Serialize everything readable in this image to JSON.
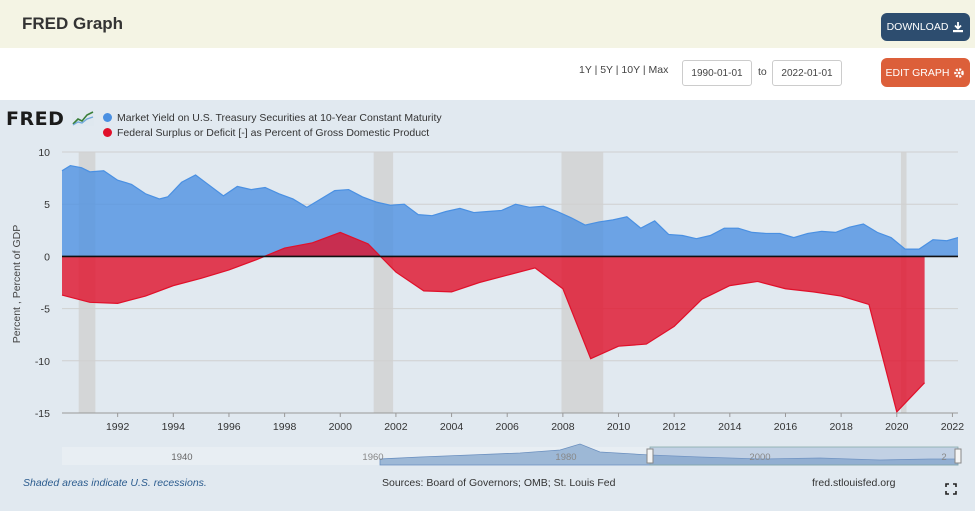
{
  "header": {
    "title": "FRED Graph",
    "download_label": "DOWNLOAD",
    "download_icon": "download-icon"
  },
  "controls": {
    "range_links": "1Y | 5Y | 10Y | Max",
    "start_date": "1990-01-01",
    "to_label": "to",
    "end_date": "2022-01-01",
    "edit_label": "EDIT GRAPH",
    "edit_icon": "gear-icon"
  },
  "logo": {
    "text": "FRED"
  },
  "legend": [
    {
      "label": "Market Yield on U.S. Treasury Securities at 10-Year Constant Maturity",
      "color": "#4a90e2"
    },
    {
      "label": "Federal Surplus or Deficit [-] as Percent of Gross Domestic Product",
      "color": "#e0102a"
    }
  ],
  "navigator": {
    "left_label": "1940",
    "labels": [
      "1960",
      "1980",
      "2000",
      "2"
    ]
  },
  "footer": {
    "recession_note": "Shaded areas indicate U.S. recessions.",
    "sources": "Sources: Board of Governors; OMB; St. Louis Fed",
    "site": "fred.stlouisfed.org",
    "expand_icon": "expand-icon"
  },
  "chart_data": {
    "type": "area",
    "ylabel": "Percent , Percent of GDP",
    "ylim": [
      -15,
      10
    ],
    "yticks": [
      10,
      5,
      0,
      -5,
      -10,
      -15
    ],
    "xlim": [
      1990.0,
      2022.2
    ],
    "xticks": [
      1992,
      1994,
      1996,
      1998,
      2000,
      2002,
      2004,
      2006,
      2008,
      2010,
      2012,
      2014,
      2016,
      2018,
      2020,
      2022
    ],
    "recessions": [
      [
        1990.6,
        1991.2
      ],
      [
        2001.2,
        2001.9
      ],
      [
        2007.95,
        2009.45
      ],
      [
        2020.15,
        2020.35
      ]
    ],
    "series": [
      {
        "name": "Market Yield on U.S. Treasury Securities at 10-Year Constant Maturity",
        "color": "#4a90e2",
        "x": [
          1990.0,
          1990.3,
          1990.7,
          1991.0,
          1991.5,
          1992.0,
          1992.5,
          1993.0,
          1993.5,
          1993.8,
          1994.3,
          1994.8,
          1995.2,
          1995.8,
          1996.3,
          1996.8,
          1997.3,
          1997.8,
          1998.3,
          1998.8,
          1999.3,
          1999.8,
          2000.3,
          2000.8,
          2001.3,
          2001.8,
          2002.3,
          2002.8,
          2003.3,
          2003.8,
          2004.3,
          2004.8,
          2005.3,
          2005.8,
          2006.3,
          2006.8,
          2007.3,
          2007.8,
          2008.3,
          2008.8,
          2009.3,
          2009.8,
          2010.3,
          2010.8,
          2011.3,
          2011.8,
          2012.3,
          2012.8,
          2013.3,
          2013.8,
          2014.3,
          2014.8,
          2015.3,
          2015.8,
          2016.3,
          2016.8,
          2017.3,
          2017.8,
          2018.3,
          2018.8,
          2019.3,
          2019.8,
          2020.3,
          2020.8,
          2021.3,
          2021.8,
          2022.2
        ],
        "values": [
          8.2,
          8.7,
          8.5,
          8.1,
          8.2,
          7.3,
          6.9,
          6.0,
          5.5,
          5.7,
          7.1,
          7.8,
          7.0,
          5.8,
          6.7,
          6.4,
          6.6,
          6.0,
          5.5,
          4.7,
          5.5,
          6.3,
          6.4,
          5.7,
          5.2,
          4.9,
          5.0,
          4.0,
          3.9,
          4.3,
          4.6,
          4.2,
          4.3,
          4.4,
          5.0,
          4.7,
          4.8,
          4.3,
          3.7,
          3.0,
          3.3,
          3.5,
          3.8,
          2.7,
          3.4,
          2.1,
          2.0,
          1.7,
          2.0,
          2.7,
          2.7,
          2.3,
          2.2,
          2.2,
          1.8,
          2.2,
          2.4,
          2.3,
          2.8,
          3.1,
          2.3,
          1.8,
          0.7,
          0.7,
          1.6,
          1.5,
          1.8
        ]
      },
      {
        "name": "Federal Surplus or Deficit [-] as Percent of Gross Domestic Product",
        "color": "#e0102a",
        "x": [
          1990.0,
          1991.0,
          1992.0,
          1993.0,
          1994.0,
          1995.0,
          1996.0,
          1997.0,
          1998.0,
          1999.0,
          2000.0,
          2001.0,
          2002.0,
          2003.0,
          2004.0,
          2005.0,
          2006.0,
          2007.0,
          2008.0,
          2009.0,
          2010.0,
          2011.0,
          2012.0,
          2013.0,
          2014.0,
          2015.0,
          2016.0,
          2017.0,
          2018.0,
          2019.0,
          2020.0,
          2021.0
        ],
        "values": [
          -3.7,
          -4.4,
          -4.5,
          -3.8,
          -2.8,
          -2.1,
          -1.3,
          -0.3,
          0.8,
          1.3,
          2.3,
          1.2,
          -1.5,
          -3.3,
          -3.4,
          -2.5,
          -1.8,
          -1.1,
          -3.1,
          -9.8,
          -8.6,
          -8.4,
          -6.7,
          -4.1,
          -2.8,
          -2.4,
          -3.1,
          -3.4,
          -3.8,
          -4.6,
          -14.9,
          -12.1
        ]
      }
    ]
  }
}
